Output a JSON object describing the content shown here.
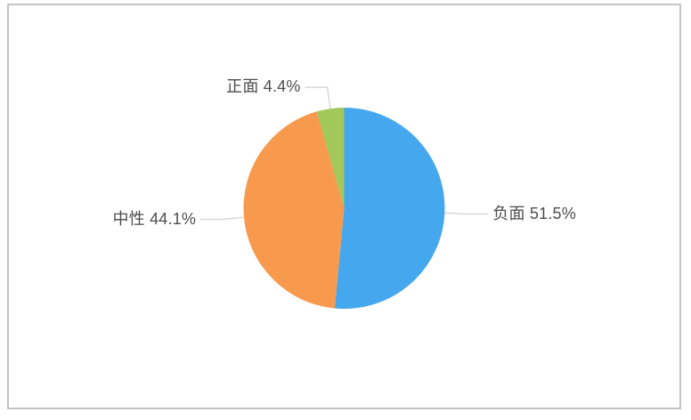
{
  "frame": {
    "border_color": "#c4c4c4",
    "background_color": "#ffffff"
  },
  "chart_data": {
    "type": "pie",
    "title": "",
    "legend": "none",
    "start_angle": "top",
    "direction": "clockwise",
    "label_line_color": "#d9d9d9",
    "label_text_color": "#4d4d4d",
    "slices": [
      {
        "key": "negative",
        "label": "负面",
        "value": 51.5,
        "display": "负面 51.5%",
        "color": "#45a7ee"
      },
      {
        "key": "neutral",
        "label": "中性",
        "value": 44.1,
        "display": "中性 44.1%",
        "color": "#f79a4e"
      },
      {
        "key": "positive",
        "label": "正面",
        "value": 4.4,
        "display": "正面 4.4%",
        "color": "#a2c75b"
      }
    ]
  }
}
